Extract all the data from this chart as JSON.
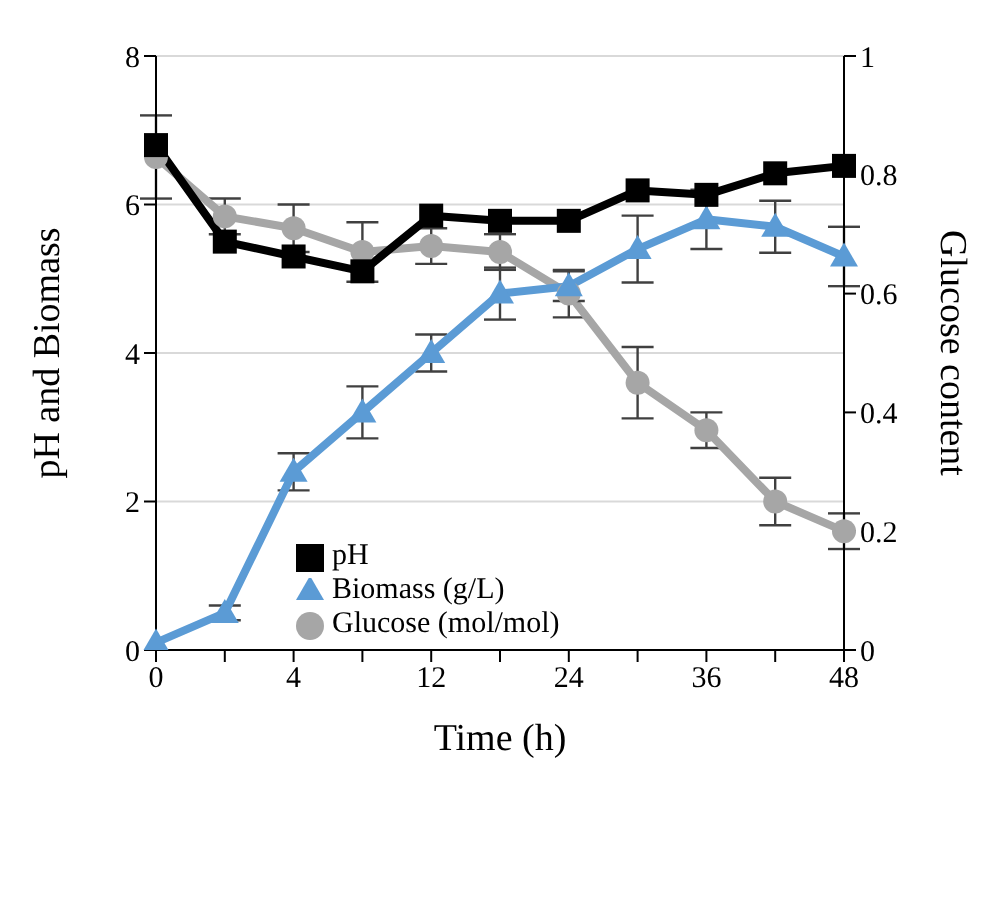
{
  "chart_data": {
    "type": "line",
    "xlabel": "Time (h)",
    "ylabel": "pH and Biomass",
    "y2label": "Glucose content",
    "categories": [
      "0",
      null,
      "4",
      null,
      "12",
      null,
      "24",
      null,
      "36",
      null,
      "48"
    ],
    "series": [
      {
        "name": "pH",
        "color": "#000000",
        "marker": "square",
        "values": [
          6.8,
          5.5,
          5.3,
          5.1,
          5.85,
          5.78,
          5.78,
          6.19,
          6.13,
          6.42,
          6.52
        ]
      },
      {
        "name": "Biomass (g/L)",
        "color": "#5b9bd5",
        "marker": "triangle",
        "values": [
          0.1,
          0.5,
          2.4,
          3.2,
          4.0,
          4.8,
          4.9,
          5.4,
          5.8,
          5.7,
          5.3
        ],
        "errors": [
          null,
          0.1,
          0.25,
          0.35,
          0.25,
          0.35,
          0.2,
          0.45,
          0.4,
          0.35,
          0.4
        ]
      },
      {
        "name": "Glucose (mol/mol)",
        "color": "#a6a6a6",
        "marker": "circle",
        "axis": "y2",
        "values": [
          0.83,
          0.73,
          0.71,
          0.67,
          0.68,
          0.67,
          0.6,
          0.45,
          0.37,
          0.25,
          0.2
        ],
        "errors": [
          0.07,
          0.03,
          0.04,
          0.05,
          0.03,
          0.03,
          0.04,
          0.06,
          0.03,
          0.04,
          0.03
        ]
      }
    ],
    "ylim": [
      0,
      8
    ],
    "yticks": [
      0,
      2,
      4,
      6,
      8
    ],
    "y2lim": [
      0,
      1
    ],
    "y2ticks": [
      0,
      0.2,
      0.4,
      0.6,
      0.8,
      1
    ],
    "grid": "y",
    "legend": "bottom",
    "line_style": "solid"
  }
}
